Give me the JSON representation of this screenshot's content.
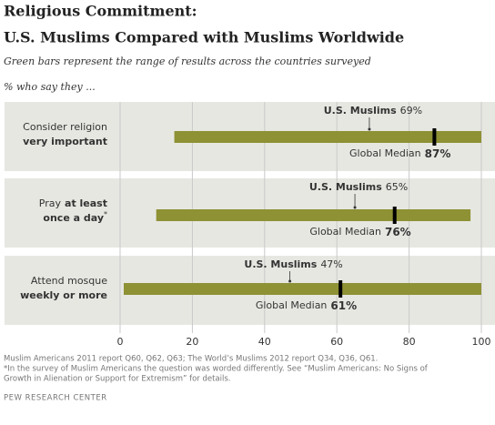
{
  "chart_data": {
    "type": "range",
    "title": [
      "Religious Commitment:",
      "U.S. Muslims Compared with Muslims Worldwide"
    ],
    "subtitle": "Green bars represent the range of results across the countries surveyed",
    "question": "% who say they ...",
    "categories": [
      [
        "Consider religion",
        "very important"
      ],
      [
        "Pray",
        "at least",
        "once a day",
        "*"
      ],
      [
        "Attend mosque",
        "weekly or more"
      ]
    ],
    "range_low": [
      15,
      10,
      1
    ],
    "range_high": [
      100,
      97,
      100
    ],
    "range_color": "#8e9134",
    "series": [
      {
        "name": "U.S. Muslims",
        "values": [
          69,
          65,
          47
        ],
        "value_labels": [
          "69%",
          "65%",
          "47%"
        ],
        "color": "#333333"
      },
      {
        "name": "Global Median",
        "values": [
          87,
          76,
          61
        ],
        "value_labels": [
          "87%",
          "76%",
          "61%"
        ],
        "color": "#000000"
      }
    ],
    "xlim": [
      0,
      100
    ],
    "xticks": [
      0,
      20,
      40,
      60,
      80,
      100
    ],
    "grid": true,
    "footnotes": [
      "Muslim Americans 2011 report Q60, Q62, Q63; The World’s Muslims 2012 report Q34, Q36, Q61.",
      "*In the survey of Muslim Americans the question was worded differently. See “Muslim Americans: No Signs of",
      "Growth in Alienation or Support for Extremism” for details."
    ],
    "source": "PEW RESEARCH CENTER"
  }
}
